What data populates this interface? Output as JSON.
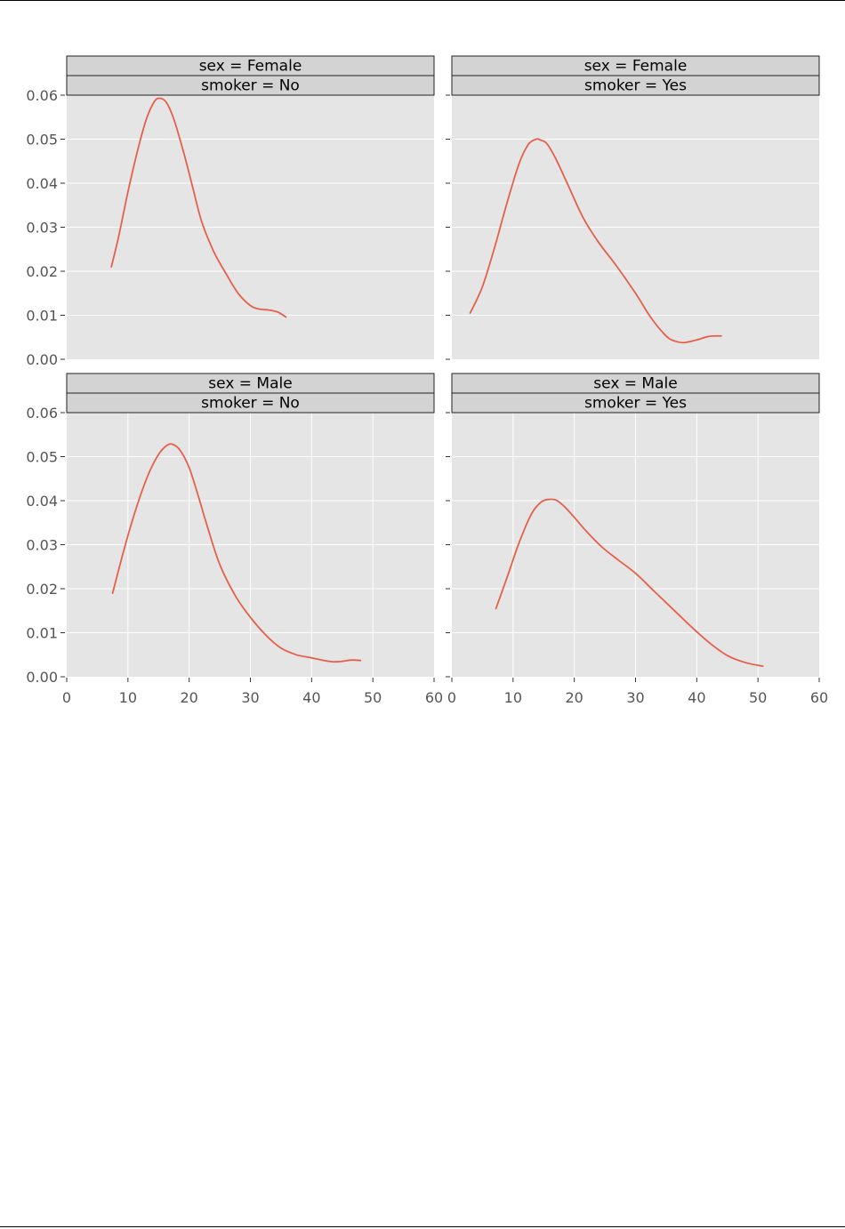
{
  "page": {
    "colors": {
      "line": "#e5604a",
      "panel": "#e5e5e5",
      "strip": "#d3d3d3",
      "grid": "#ffffff"
    }
  },
  "chart_data": {
    "type": "line",
    "facet_rows": "sex",
    "facet_cols": "smoker",
    "xlim": [
      0,
      60
    ],
    "ylim": [
      0.0,
      0.06
    ],
    "xticks": [
      0,
      10,
      20,
      30,
      40,
      50,
      60
    ],
    "yticks": [
      0.0,
      0.01,
      0.02,
      0.03,
      0.04,
      0.05,
      0.06
    ],
    "xtick_labels": [
      "0",
      "10",
      "20",
      "30",
      "40",
      "50",
      "60"
    ],
    "ytick_labels": [
      "0.00",
      "0.01",
      "0.02",
      "0.03",
      "0.04",
      "0.05",
      "0.06"
    ],
    "grid": true,
    "panels": [
      {
        "strip_top": "sex = Female",
        "strip_bottom": "smoker = No",
        "x": [
          7.3,
          8.5,
          10,
          11.5,
          13,
          14.3,
          15.2,
          16.3,
          17.5,
          19,
          20.5,
          22,
          24,
          26,
          28,
          30,
          31.5,
          33,
          34.5,
          35.8
        ],
        "y": [
          0.021,
          0.028,
          0.038,
          0.047,
          0.0545,
          0.0585,
          0.0593,
          0.0583,
          0.0545,
          0.0475,
          0.0395,
          0.0315,
          0.0245,
          0.0195,
          0.015,
          0.0122,
          0.0114,
          0.0112,
          0.0107,
          0.0096
        ]
      },
      {
        "strip_top": "sex = Female",
        "strip_bottom": "smoker = Yes",
        "x": [
          3,
          5,
          7,
          9,
          11,
          12.5,
          13.8,
          14.5,
          15.5,
          17,
          19,
          21.5,
          24,
          27,
          30,
          32.5,
          35,
          36.5,
          38,
          40,
          42,
          44
        ],
        "y": [
          0.0105,
          0.0165,
          0.0255,
          0.0355,
          0.0445,
          0.0488,
          0.05,
          0.0498,
          0.049,
          0.0455,
          0.0395,
          0.032,
          0.0265,
          0.021,
          0.015,
          0.0095,
          0.0053,
          0.0041,
          0.0038,
          0.0044,
          0.0052,
          0.0053
        ]
      },
      {
        "strip_top": "sex = Male",
        "strip_bottom": "smoker = No",
        "x": [
          7.5,
          9,
          10.5,
          12,
          13.5,
          15,
          16.3,
          17.3,
          18.5,
          20,
          21.5,
          23,
          25,
          27.5,
          30,
          32.5,
          35,
          37.5,
          40,
          42,
          43.5,
          45,
          46.5,
          48
        ],
        "y": [
          0.019,
          0.027,
          0.0345,
          0.041,
          0.0465,
          0.0505,
          0.0525,
          0.0528,
          0.0515,
          0.0475,
          0.041,
          0.034,
          0.0255,
          0.0185,
          0.0135,
          0.0095,
          0.0065,
          0.005,
          0.0043,
          0.0037,
          0.0034,
          0.0035,
          0.0038,
          0.0037
        ]
      },
      {
        "strip_top": "sex = Male",
        "strip_bottom": "smoker = Yes",
        "x": [
          7.2,
          9,
          11,
          13,
          14.7,
          16.2,
          17.2,
          18.5,
          20,
          22,
          24.5,
          27,
          30,
          33,
          36,
          39,
          42,
          45,
          48,
          50.8
        ],
        "y": [
          0.0155,
          0.0225,
          0.0305,
          0.037,
          0.0398,
          0.0403,
          0.04,
          0.0385,
          0.0362,
          0.033,
          0.0295,
          0.0267,
          0.0235,
          0.0195,
          0.0155,
          0.0115,
          0.0078,
          0.0048,
          0.0032,
          0.0024
        ]
      }
    ]
  }
}
